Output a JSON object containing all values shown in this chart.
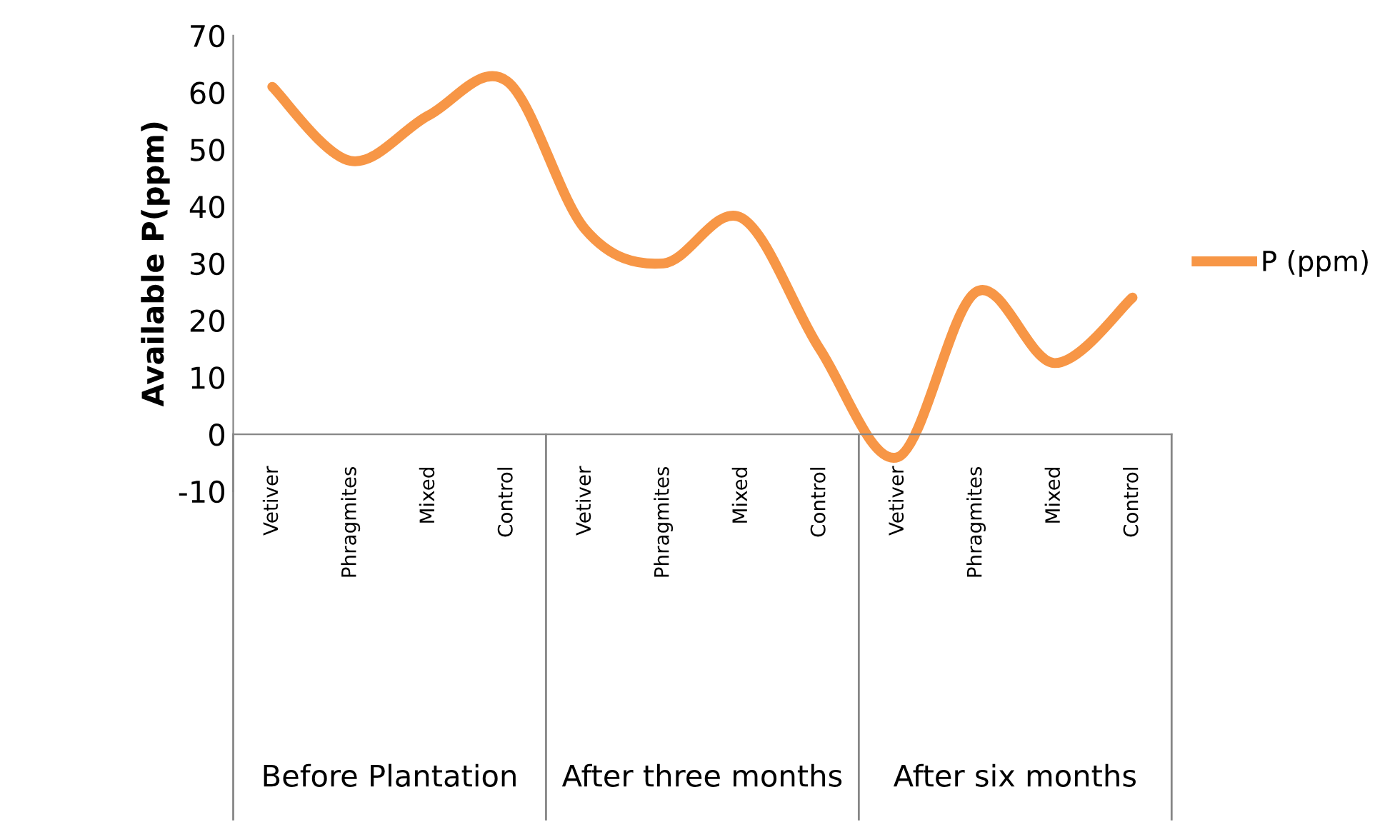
{
  "chart_data": {
    "type": "line",
    "ylabel": "Available P(ppm)",
    "categories": [
      "Vetiver",
      "Phragmites",
      "Mixed",
      "Control",
      "Vetiver",
      "Phragmites",
      "Mixed",
      "Control",
      "Vetiver",
      "Phragmites",
      "Mixed",
      "Control"
    ],
    "series": [
      {
        "name": "P (ppm)",
        "color": "#f79646",
        "values": [
          61,
          48,
          56,
          62,
          36,
          30,
          38,
          15,
          -4,
          25,
          12.5,
          24
        ]
      }
    ],
    "annotations": [
      "Before Plantation",
      "After three months",
      "After six months"
    ],
    "ylim": [
      -10,
      70
    ],
    "yticks": [
      -10,
      0,
      10,
      20,
      30,
      40,
      50,
      60,
      70
    ],
    "grid": false,
    "legend": "right",
    "marker": "none",
    "line_style": "solid"
  }
}
